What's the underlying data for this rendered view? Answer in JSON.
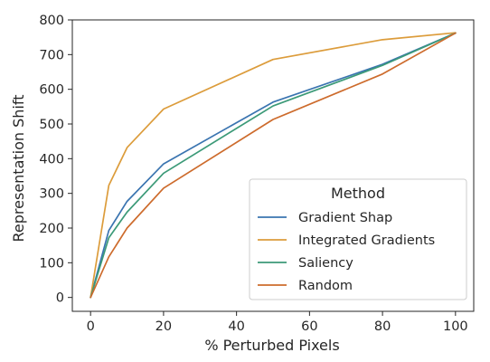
{
  "chart_data": {
    "type": "line",
    "xlabel": "% Perturbed Pixels",
    "ylabel": "Representation Shift",
    "xlim": [
      -5,
      105
    ],
    "ylim": [
      -40,
      800
    ],
    "xticks": [
      0,
      20,
      40,
      60,
      80,
      100
    ],
    "yticks": [
      0,
      100,
      200,
      300,
      400,
      500,
      600,
      700,
      800
    ],
    "grid": false,
    "legend": {
      "title": "Method",
      "placement": "bottom-right"
    },
    "x": [
      0,
      5,
      10,
      20,
      50,
      80,
      100
    ],
    "series": [
      {
        "name": "Gradient Shap",
        "color": "#3a74b0",
        "values": [
          0,
          193,
          277,
          385,
          563,
          672,
          762
        ]
      },
      {
        "name": "Integrated Gradients",
        "color": "#dc9c3b",
        "values": [
          0,
          323,
          432,
          543,
          686,
          743,
          763
        ]
      },
      {
        "name": "Saliency",
        "color": "#3c9a78",
        "values": [
          0,
          172,
          246,
          358,
          552,
          669,
          762
        ]
      },
      {
        "name": "Random",
        "color": "#cd6b2c",
        "values": [
          0,
          117,
          200,
          315,
          513,
          644,
          762
        ]
      }
    ]
  }
}
